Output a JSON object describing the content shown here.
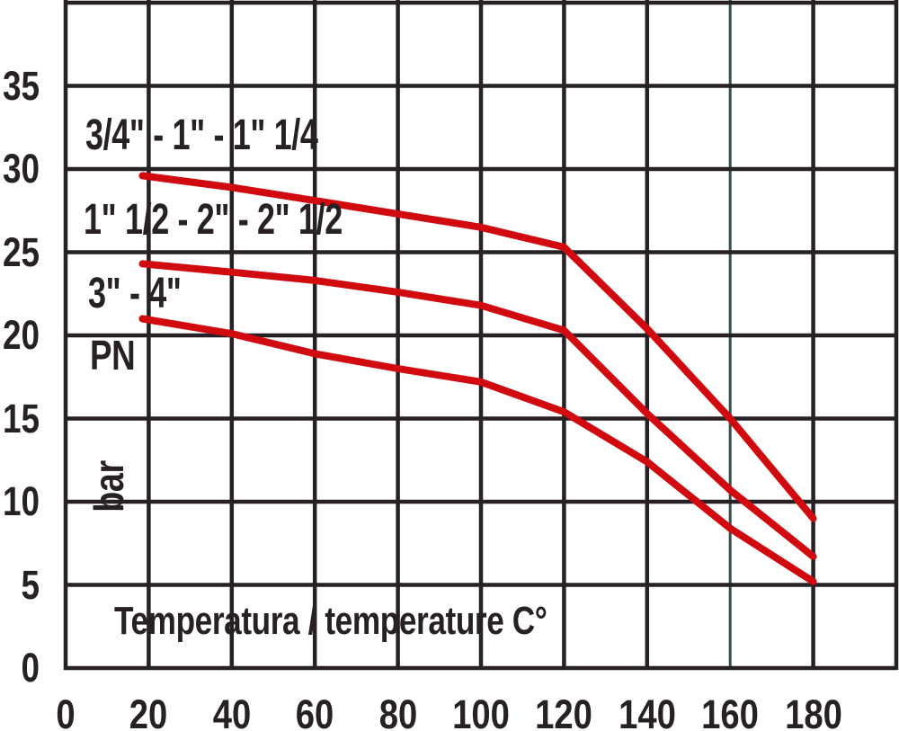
{
  "chart_data": {
    "type": "line",
    "xlabel": "Temperatura / temperature C°",
    "ylabel": "PN",
    "y_unit": "bar",
    "xlim": [
      0,
      200
    ],
    "ylim": [
      0,
      40
    ],
    "x_ticks": [
      0,
      20,
      40,
      60,
      80,
      100,
      120,
      140,
      160,
      180
    ],
    "y_ticks": [
      35,
      30,
      25,
      20,
      15,
      10,
      5,
      0
    ],
    "grid": true,
    "legend_position": "inline-left",
    "highlight_gridline_x": 160,
    "series": [
      {
        "name": "3/4\" - 1\" - 1\" 1/4",
        "points": [
          [
            18.5,
            29.6
          ],
          [
            40,
            28.9
          ],
          [
            60,
            28.1
          ],
          [
            80,
            27.3
          ],
          [
            100,
            26.5
          ],
          [
            120,
            25.3
          ],
          [
            140,
            20.4
          ],
          [
            160,
            15.0
          ],
          [
            180,
            9.0
          ]
        ]
      },
      {
        "name": "1\" 1/2 - 2\" - 2\" 1/2",
        "points": [
          [
            18.5,
            24.3
          ],
          [
            40,
            23.8
          ],
          [
            60,
            23.3
          ],
          [
            80,
            22.6
          ],
          [
            100,
            21.8
          ],
          [
            120,
            20.3
          ],
          [
            140,
            15.3
          ],
          [
            160,
            10.7
          ],
          [
            180,
            6.7
          ]
        ]
      },
      {
        "name": "3\" - 4\"",
        "points": [
          [
            18.5,
            21.0
          ],
          [
            40,
            20.1
          ],
          [
            60,
            18.9
          ],
          [
            80,
            18.0
          ],
          [
            100,
            17.2
          ],
          [
            120,
            15.4
          ],
          [
            140,
            12.4
          ],
          [
            160,
            8.4
          ],
          [
            180,
            5.2
          ]
        ]
      }
    ]
  },
  "labels": {
    "series_1": "3/4\" - 1\" - 1\" 1/4",
    "series_2": "1\" 1/2 - 2\" - 2\" 1/2",
    "series_3": "3\" - 4\"",
    "pn": "PN",
    "bar": "bar",
    "x_axis_title": "Temperatura / temperature C°"
  },
  "colors": {
    "grid": "#272125",
    "text": "#272125",
    "curve": "#d10a10",
    "highlight_line": "#30514b",
    "background": "#ffffff"
  }
}
